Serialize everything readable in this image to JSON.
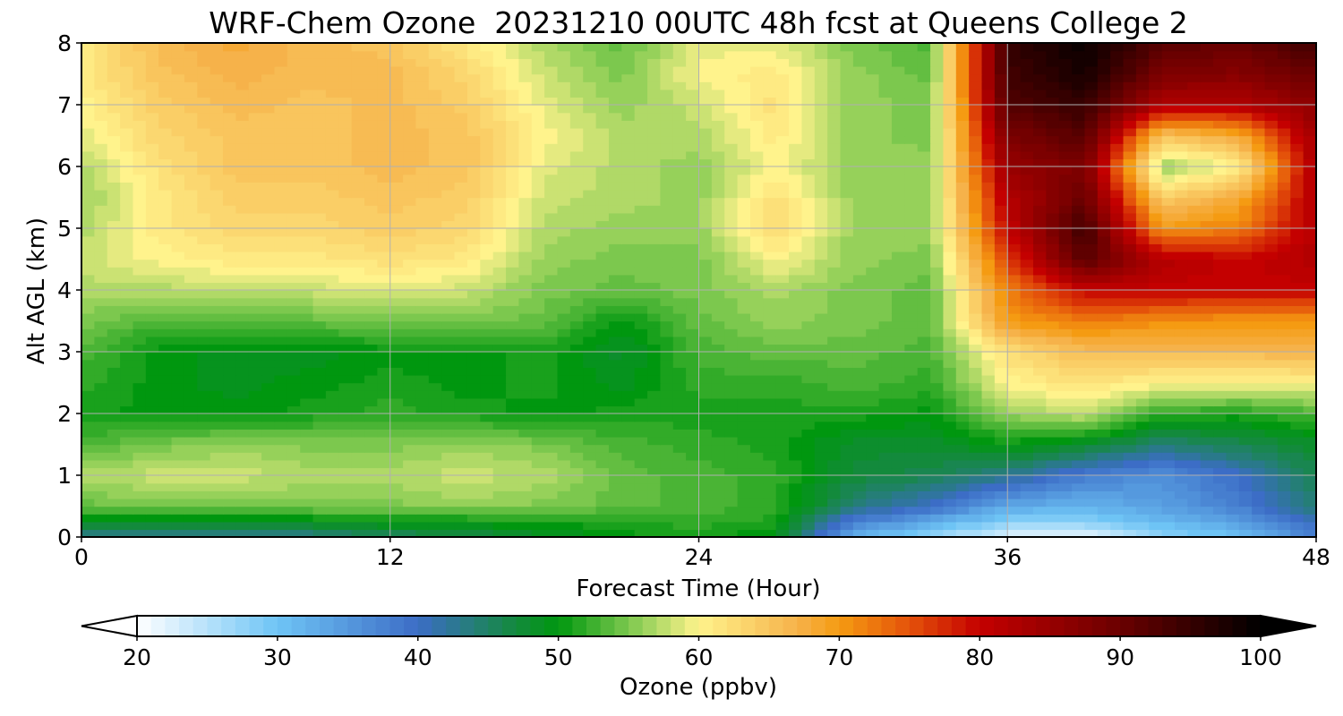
{
  "chart_data": {
    "type": "heatmap",
    "title": "WRF-Chem Ozone  20231210 00UTC 48h fcst at Queens College 2",
    "xlabel": "Forecast Time (Hour)",
    "ylabel": "Alt AGL (km)",
    "xlim": [
      0,
      48
    ],
    "ylim": [
      0,
      8
    ],
    "x_ticks": [
      "0",
      "12",
      "24",
      "36",
      "48"
    ],
    "y_ticks": [
      "0",
      "1",
      "2",
      "3",
      "4",
      "5",
      "6",
      "7",
      "8"
    ],
    "grid": true,
    "colorbar": {
      "label": "Ozone  (ppbv)",
      "range": [
        20,
        100
      ],
      "ticks": [
        "20",
        "30",
        "40",
        "50",
        "60",
        "70",
        "80",
        "90",
        "100"
      ],
      "extend": "both",
      "colors": {
        "20": "#ffffff",
        "30": "#6ec4f5",
        "40": "#3c6dc6",
        "47": "#138a3c",
        "50": "#00970f",
        "55": "#7cc84e",
        "60": "#fff38c",
        "67": "#f6b24a",
        "70": "#f59b12",
        "75": "#e4520a",
        "80": "#c40000",
        "90": "#6a0000",
        "100": "#000000"
      }
    },
    "altitudes_km": [
      0,
      0.25,
      0.5,
      1,
      1.5,
      2,
      2.5,
      3,
      3.5,
      4,
      4.5,
      5,
      5.5,
      6,
      6.5,
      7,
      7.5,
      8
    ],
    "hours": [
      0,
      3,
      6,
      9,
      12,
      15,
      18,
      21,
      24,
      27,
      30,
      33,
      36,
      39,
      42,
      45,
      48
    ],
    "z_ppbv": [
      [
        43,
        43,
        42,
        43,
        45,
        46,
        48,
        50,
        51,
        49,
        32,
        27,
        22,
        21,
        28,
        30,
        38
      ],
      [
        49,
        48,
        48,
        49,
        50,
        50,
        51,
        51,
        52,
        51,
        38,
        33,
        28,
        28,
        31,
        34,
        40
      ],
      [
        54,
        55,
        55,
        55,
        55,
        56,
        55,
        54,
        53,
        52,
        44,
        40,
        33,
        32,
        34,
        38,
        44
      ],
      [
        57,
        58,
        58,
        57,
        57,
        58,
        57,
        54,
        53,
        52,
        47,
        46,
        43,
        38,
        36,
        40,
        46
      ],
      [
        53,
        55,
        56,
        55,
        55,
        56,
        55,
        53,
        52,
        51,
        48,
        48,
        50,
        48,
        44,
        46,
        48
      ],
      [
        51,
        50,
        50,
        51,
        52,
        51,
        50,
        51,
        51,
        51,
        51,
        50,
        56,
        58,
        52,
        51,
        53
      ],
      [
        52,
        50,
        49,
        50,
        51,
        50,
        51,
        49,
        52,
        52,
        53,
        52,
        60,
        62,
        60,
        60,
        60
      ],
      [
        53,
        50,
        49,
        49,
        50,
        50,
        51,
        48,
        53,
        54,
        54,
        53,
        62,
        66,
        66,
        66,
        67
      ],
      [
        55,
        53,
        53,
        54,
        55,
        55,
        54,
        50,
        54,
        56,
        55,
        54,
        70,
        72,
        71,
        70,
        70
      ],
      [
        57,
        57,
        58,
        58,
        59,
        58,
        55,
        54,
        55,
        57,
        55,
        54,
        72,
        80,
        80,
        80,
        80
      ],
      [
        58,
        60,
        61,
        61,
        62,
        61,
        56,
        55,
        55,
        60,
        56,
        55,
        76,
        92,
        82,
        80,
        82
      ],
      [
        57,
        61,
        63,
        63,
        64,
        63,
        57,
        56,
        56,
        63,
        56,
        56,
        80,
        94,
        70,
        72,
        82
      ],
      [
        56,
        61,
        64,
        64,
        65,
        64,
        58,
        57,
        56,
        62,
        56,
        56,
        82,
        90,
        64,
        68,
        82
      ],
      [
        57,
        62,
        65,
        65,
        66,
        65,
        59,
        57,
        56,
        60,
        56,
        56,
        85,
        88,
        56,
        60,
        83
      ],
      [
        59,
        63,
        65,
        65,
        66,
        65,
        60,
        57,
        57,
        61,
        56,
        55,
        88,
        92,
        65,
        68,
        84
      ],
      [
        60,
        64,
        66,
        65,
        66,
        64,
        59,
        56,
        58,
        62,
        56,
        55,
        92,
        95,
        82,
        82,
        86
      ],
      [
        61,
        65,
        67,
        66,
        66,
        63,
        58,
        55,
        60,
        61,
        56,
        54,
        94,
        98,
        88,
        87,
        90
      ],
      [
        61,
        66,
        68,
        66,
        65,
        61,
        57,
        54,
        59,
        59,
        55,
        53,
        95,
        99,
        92,
        90,
        94
      ]
    ]
  }
}
